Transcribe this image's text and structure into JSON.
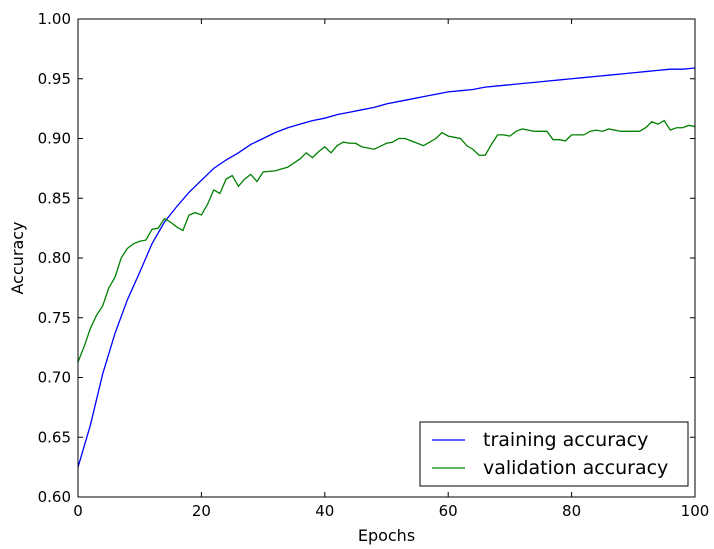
{
  "chart_data": {
    "type": "line",
    "title": "",
    "xlabel": "Epochs",
    "ylabel": "Accuracy",
    "xlim": [
      0,
      100
    ],
    "ylim": [
      0.6,
      1.0
    ],
    "x_ticks": [
      "0",
      "20",
      "40",
      "60",
      "80",
      "100"
    ],
    "y_ticks": [
      "0.60",
      "0.65",
      "0.70",
      "0.75",
      "0.80",
      "0.85",
      "0.90",
      "0.95",
      "1.00"
    ],
    "legend_position": "lower-right",
    "grid": false,
    "series": [
      {
        "name": "training accuracy",
        "color": "#0000ff",
        "x": [
          0,
          2,
          4,
          6,
          8,
          10,
          12,
          14,
          16,
          18,
          20,
          22,
          24,
          26,
          28,
          30,
          32,
          34,
          36,
          38,
          40,
          42,
          44,
          46,
          48,
          50,
          52,
          54,
          56,
          58,
          60,
          62,
          64,
          66,
          68,
          70,
          72,
          74,
          76,
          78,
          80,
          82,
          84,
          86,
          88,
          90,
          92,
          94,
          96,
          98,
          100
        ],
        "values": [
          0.625,
          0.66,
          0.703,
          0.737,
          0.765,
          0.788,
          0.812,
          0.83,
          0.843,
          0.855,
          0.865,
          0.875,
          0.882,
          0.888,
          0.895,
          0.9,
          0.905,
          0.909,
          0.912,
          0.915,
          0.917,
          0.92,
          0.922,
          0.924,
          0.926,
          0.929,
          0.931,
          0.933,
          0.935,
          0.937,
          0.939,
          0.94,
          0.941,
          0.943,
          0.944,
          0.945,
          0.946,
          0.947,
          0.948,
          0.949,
          0.95,
          0.951,
          0.952,
          0.953,
          0.954,
          0.955,
          0.956,
          0.957,
          0.958,
          0.958,
          0.959
        ]
      },
      {
        "name": "validation accuracy",
        "color": "#008000",
        "x": [
          0,
          1,
          2,
          3,
          4,
          5,
          6,
          7,
          8,
          9,
          10,
          11,
          12,
          13,
          14,
          15,
          16,
          17,
          18,
          19,
          20,
          21,
          22,
          23,
          24,
          25,
          26,
          27,
          28,
          29,
          30,
          32,
          34,
          36,
          37,
          38,
          39,
          40,
          41,
          42,
          43,
          44,
          45,
          46,
          48,
          50,
          51,
          52,
          53,
          54,
          55,
          56,
          58,
          59,
          60,
          61,
          62,
          63,
          64,
          65,
          66,
          67,
          68,
          69,
          70,
          71,
          72,
          74,
          76,
          77,
          78,
          79,
          80,
          82,
          83,
          84,
          85,
          86,
          88,
          90,
          91,
          92,
          93,
          94,
          95,
          96,
          97,
          98,
          99,
          100
        ],
        "values": [
          0.713,
          0.726,
          0.741,
          0.752,
          0.76,
          0.775,
          0.784,
          0.8,
          0.808,
          0.812,
          0.814,
          0.815,
          0.824,
          0.825,
          0.833,
          0.83,
          0.826,
          0.823,
          0.836,
          0.838,
          0.836,
          0.845,
          0.857,
          0.854,
          0.866,
          0.869,
          0.86,
          0.866,
          0.87,
          0.864,
          0.872,
          0.873,
          0.876,
          0.883,
          0.888,
          0.884,
          0.889,
          0.893,
          0.888,
          0.894,
          0.897,
          0.896,
          0.896,
          0.893,
          0.891,
          0.896,
          0.897,
          0.9,
          0.9,
          0.898,
          0.896,
          0.894,
          0.9,
          0.905,
          0.902,
          0.901,
          0.9,
          0.894,
          0.891,
          0.886,
          0.886,
          0.895,
          0.903,
          0.903,
          0.902,
          0.906,
          0.908,
          0.906,
          0.906,
          0.899,
          0.899,
          0.898,
          0.903,
          0.903,
          0.906,
          0.907,
          0.906,
          0.908,
          0.906,
          0.906,
          0.906,
          0.909,
          0.914,
          0.912,
          0.915,
          0.907,
          0.909,
          0.909,
          0.911,
          0.91
        ]
      }
    ]
  }
}
